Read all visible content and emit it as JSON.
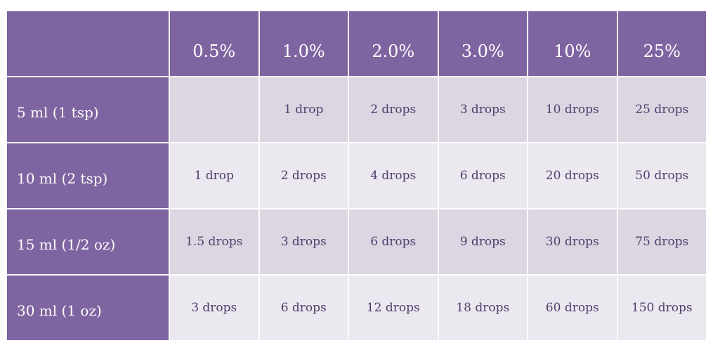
{
  "table": {
    "corner": "",
    "columns": [
      "0.5%",
      "1.0%",
      "2.0%",
      "3.0%",
      "10%",
      "25%"
    ],
    "rows": [
      {
        "label": "5 ml (1 tsp)",
        "values": [
          "",
          "1 drop",
          "2 drops",
          "3 drops",
          "10 drops",
          "25 drops"
        ]
      },
      {
        "label": "10 ml (2 tsp)",
        "values": [
          "1 drop",
          "2 drops",
          "4 drops",
          "6 drops",
          "20 drops",
          "50 drops"
        ]
      },
      {
        "label": "15 ml (1/2 oz)",
        "values": [
          "1.5 drops",
          "3 drops",
          "6 drops",
          "9 drops",
          "30 drops",
          "75 drops"
        ]
      },
      {
        "label": "30 ml (1 oz)",
        "values": [
          "3 drops",
          "6 drops",
          "12 drops",
          "18 drops",
          "60 drops",
          "150 drops"
        ]
      }
    ]
  },
  "colors": {
    "header_bg": "#7e64a0",
    "header_text": "#ffffff",
    "cell_dark": "#dcd6e2",
    "cell_light": "#ebe8f0",
    "cell_text": "#4e3f6b"
  }
}
